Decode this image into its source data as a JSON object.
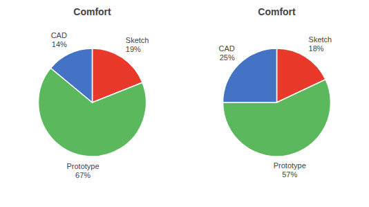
{
  "chart_data": [
    {
      "type": "pie",
      "title": "Comfort",
      "categories": [
        "Sketch",
        "Prototype",
        "CAD"
      ],
      "values": [
        19,
        67,
        14
      ],
      "value_labels": [
        "19%",
        "67%",
        "14%"
      ],
      "colors": [
        "#E8392A",
        "#5CB85C",
        "#4472C4"
      ],
      "data_labels": true
    },
    {
      "type": "pie",
      "title": "Comfort",
      "categories": [
        "Sketch",
        "Prototype",
        "CAD"
      ],
      "values": [
        18,
        57,
        25
      ],
      "value_labels": [
        "18%",
        "57%",
        "25%"
      ],
      "colors": [
        "#E8392A",
        "#5CB85C",
        "#4472C4"
      ],
      "data_labels": true
    }
  ]
}
